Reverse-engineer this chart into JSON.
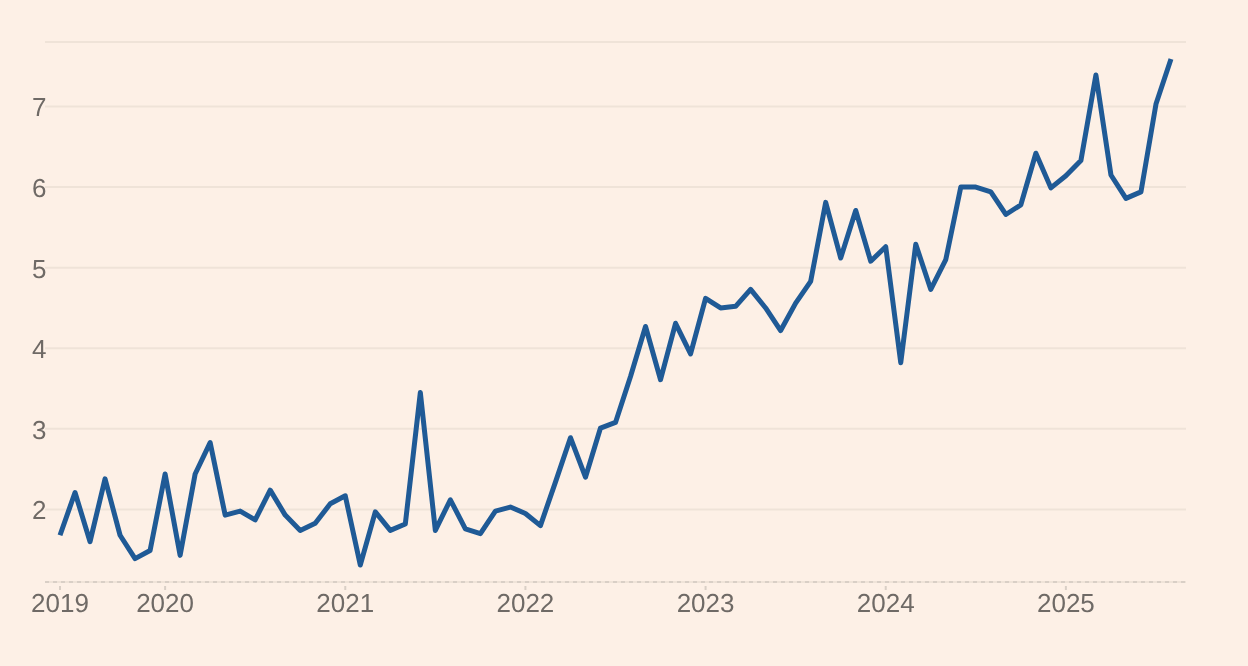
{
  "chart_data": {
    "type": "line",
    "x": [
      "2019-06",
      "2019-07",
      "2019-08",
      "2019-09",
      "2019-10",
      "2019-11",
      "2019-12",
      "2020-01",
      "2020-02",
      "2020-03",
      "2020-04",
      "2020-05",
      "2020-06",
      "2020-07",
      "2020-08",
      "2020-09",
      "2020-10",
      "2020-11",
      "2020-12",
      "2021-01",
      "2021-02",
      "2021-03",
      "2021-04",
      "2021-05",
      "2021-06",
      "2021-07",
      "2021-08",
      "2021-09",
      "2021-10",
      "2021-11",
      "2021-12",
      "2022-01",
      "2022-02",
      "2022-03",
      "2022-04",
      "2022-05",
      "2022-06",
      "2022-07",
      "2022-08",
      "2022-09",
      "2022-10",
      "2022-11",
      "2022-12",
      "2023-01",
      "2023-02",
      "2023-03",
      "2023-04",
      "2023-05",
      "2023-06",
      "2023-07",
      "2023-08",
      "2023-09",
      "2023-10",
      "2023-11",
      "2023-12",
      "2024-01",
      "2024-02",
      "2024-03",
      "2024-04",
      "2024-05",
      "2024-06",
      "2024-07",
      "2024-08",
      "2024-09",
      "2024-10",
      "2024-11",
      "2024-12",
      "2025-01",
      "2025-02",
      "2025-03",
      "2025-04",
      "2025-05",
      "2025-06",
      "2025-07",
      "2025-08"
    ],
    "series": [
      {
        "color": "#1f5a96",
        "values": [
          1.68,
          2.21,
          1.6,
          2.38,
          1.68,
          1.39,
          1.49,
          2.44,
          1.43,
          2.44,
          2.83,
          1.93,
          1.98,
          1.87,
          2.24,
          1.93,
          1.74,
          1.83,
          2.07,
          2.17,
          1.31,
          1.97,
          1.74,
          1.82,
          3.45,
          1.74,
          2.12,
          1.76,
          1.7,
          1.98,
          2.03,
          1.95,
          1.8,
          2.34,
          2.89,
          2.4,
          3.01,
          3.08,
          3.65,
          4.27,
          3.61,
          4.31,
          3.93,
          4.62,
          4.5,
          4.52,
          4.73,
          4.5,
          4.22,
          4.56,
          4.83,
          5.81,
          5.12,
          5.71,
          5.08,
          5.26,
          3.82,
          5.29,
          4.73,
          5.1,
          6.0,
          6.0,
          5.94,
          5.66,
          5.78,
          6.42,
          5.99,
          6.14,
          6.33,
          7.39,
          6.15,
          5.86,
          5.94,
          7.03,
          7.59
        ]
      }
    ],
    "xlim": [
      "2019-05",
      "2025-09"
    ],
    "xticks": [
      {
        "value": "2019-06",
        "label": "2019"
      },
      {
        "value": "2020-01",
        "label": "2020"
      },
      {
        "value": "2021-01",
        "label": "2021"
      },
      {
        "value": "2022-01",
        "label": "2022"
      },
      {
        "value": "2023-01",
        "label": "2023"
      },
      {
        "value": "2024-01",
        "label": "2024"
      },
      {
        "value": "2025-01",
        "label": "2025"
      }
    ],
    "ylim": [
      1.1,
      7.8
    ],
    "yticks": [
      2,
      3,
      4,
      5,
      6,
      7
    ],
    "grid": "y",
    "legend": false,
    "marker": "none",
    "line_style": "solid"
  }
}
